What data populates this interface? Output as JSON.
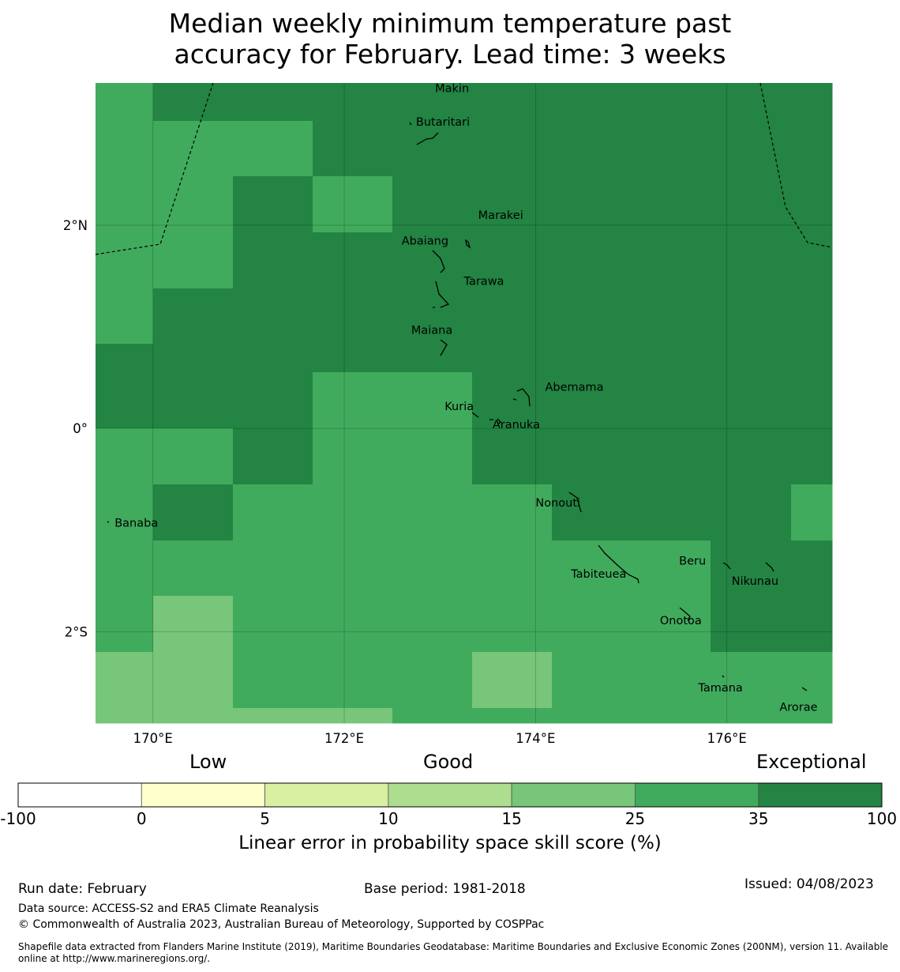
{
  "title": {
    "line1": "Median weekly minimum temperature past",
    "line2": "accuracy for February. Lead time: 3 weeks"
  },
  "map": {
    "lon_range": [
      169.4,
      177.1
    ],
    "lat_range": [
      -2.9,
      3.4
    ],
    "x_ticks": [
      {
        "value": 170,
        "label": "170°E"
      },
      {
        "value": 172,
        "label": "172°E"
      },
      {
        "value": 174,
        "label": "174°E"
      },
      {
        "value": 176,
        "label": "176°E"
      }
    ],
    "y_ticks": [
      {
        "value": 2,
        "label": "2°N"
      },
      {
        "value": 0,
        "label": "0°"
      },
      {
        "value": -2,
        "label": "2°S"
      }
    ],
    "colors": {
      "c35_100": "#238443",
      "c25_35": "#41ab5d",
      "c15_25": "#78c679"
    },
    "grid_cells": {
      "lon_edges": [
        169.4,
        170.0,
        170.833,
        171.667,
        172.5,
        173.333,
        174.167,
        175.0,
        175.833,
        176.667,
        177.1
      ],
      "lat_edges": [
        3.4,
        3.03,
        2.48,
        1.93,
        1.38,
        0.83,
        0.55,
        0.0,
        -0.55,
        -1.1,
        -1.65,
        -2.2,
        -2.75,
        -2.9
      ],
      "classes": [
        [
          1,
          0,
          0,
          0,
          0,
          0,
          0,
          0,
          0,
          0
        ],
        [
          1,
          1,
          1,
          0,
          0,
          0,
          0,
          0,
          0,
          0
        ],
        [
          1,
          1,
          0,
          1,
          0,
          0,
          0,
          0,
          0,
          0
        ],
        [
          1,
          1,
          0,
          0,
          0,
          0,
          0,
          0,
          0,
          0
        ],
        [
          1,
          0,
          0,
          0,
          0,
          0,
          0,
          0,
          0,
          0
        ],
        [
          0,
          0,
          0,
          0,
          0,
          0,
          0,
          0,
          0,
          0
        ],
        [
          0,
          0,
          0,
          1,
          1,
          0,
          0,
          0,
          0,
          0
        ],
        [
          1,
          1,
          0,
          1,
          1,
          0,
          0,
          0,
          0,
          0
        ],
        [
          1,
          0,
          1,
          1,
          1,
          1,
          0,
          0,
          0,
          1
        ],
        [
          1,
          1,
          1,
          1,
          1,
          1,
          1,
          1,
          0,
          0
        ],
        [
          1,
          2,
          1,
          1,
          1,
          1,
          1,
          1,
          0,
          0
        ],
        [
          2,
          2,
          1,
          1,
          1,
          2,
          1,
          1,
          1,
          1
        ],
        [
          2,
          2,
          2,
          2,
          1,
          1,
          1,
          1,
          1,
          1
        ]
      ]
    },
    "islands": [
      {
        "name": "Makin",
        "lon": 172.95,
        "lat": 3.35
      },
      {
        "name": "Butaritari",
        "lon": 172.75,
        "lat": 3.02
      },
      {
        "name": "Marakei",
        "lon": 173.4,
        "lat": 2.1
      },
      {
        "name": "Abaiang",
        "lon": 172.6,
        "lat": 1.85
      },
      {
        "name": "Tarawa",
        "lon": 173.25,
        "lat": 1.45
      },
      {
        "name": "Maiana",
        "lon": 172.7,
        "lat": 0.97
      },
      {
        "name": "Abemama",
        "lon": 174.1,
        "lat": 0.41
      },
      {
        "name": "Kuria",
        "lon": 173.05,
        "lat": 0.22
      },
      {
        "name": "Aranuka",
        "lon": 173.55,
        "lat": 0.04
      },
      {
        "name": "Nonouti",
        "lon": 174.0,
        "lat": -0.73
      },
      {
        "name": "Banaba",
        "lon": 169.6,
        "lat": -0.93
      },
      {
        "name": "Tabiteuea",
        "lon": 174.37,
        "lat": -1.43
      },
      {
        "name": "Beru",
        "lon": 175.5,
        "lat": -1.3
      },
      {
        "name": "Nikunau",
        "lon": 176.05,
        "lat": -1.5
      },
      {
        "name": "Onotoa",
        "lon": 175.3,
        "lat": -1.89
      },
      {
        "name": "Tamana",
        "lon": 175.7,
        "lat": -2.55
      },
      {
        "name": "Arorae",
        "lon": 176.55,
        "lat": -2.74
      }
    ]
  },
  "colorbar": {
    "label_low": "Low",
    "label_good": "Good",
    "label_exceptional": "Exceptional",
    "title": "Linear error in probability space skill score (%)",
    "ticks": [
      "-100",
      "0",
      "5",
      "10",
      "15",
      "25",
      "35",
      "100"
    ],
    "colors": [
      "#ffffff",
      "#ffffcc",
      "#d9f0a3",
      "#addd8e",
      "#78c679",
      "#41ab5d",
      "#238443"
    ]
  },
  "footer": {
    "run_date": "Run date: February",
    "base_period": "Base period: 1981-2018",
    "issued": "Issued: 04/08/2023",
    "data_source": "Data source: ACCESS-S2 and ERA5 Climate Reanalysis",
    "copyright": "© Commonwealth of Australia 2023, Australian Bureau of Meteorology, Supported by COSPPac",
    "shapefile_line1": "Shapefile data extracted from Flanders Marine Institute (2019), Maritime Boundaries Geodatabase: Maritime Boundaries and Exclusive Economic Zones (200NM), version 11. Available",
    "shapefile_line2": "online at http://www.marineregions.org/."
  }
}
